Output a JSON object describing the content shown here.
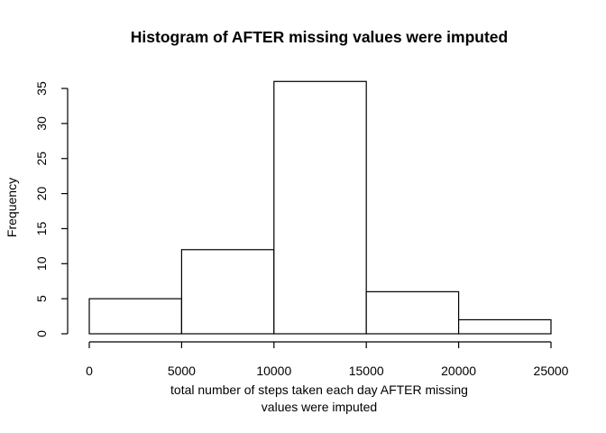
{
  "chart_data": {
    "type": "bar",
    "title": "Histogram of AFTER missing values were imputed",
    "xlabel": "total number of steps taken each day AFTER missing",
    "xlabel_line2": "values were imputed",
    "ylabel": "Frequency",
    "bins": [
      {
        "from": 0,
        "to": 5000,
        "count": 5
      },
      {
        "from": 5000,
        "to": 10000,
        "count": 12
      },
      {
        "from": 10000,
        "to": 15000,
        "count": 36
      },
      {
        "from": 15000,
        "to": 20000,
        "count": 6
      },
      {
        "from": 20000,
        "to": 25000,
        "count": 2
      }
    ],
    "xlim": [
      0,
      25000
    ],
    "ylim": [
      0,
      36
    ],
    "x_ticks": [
      "0",
      "5000",
      "10000",
      "15000",
      "20000",
      "25000"
    ],
    "y_ticks": [
      "0",
      "5",
      "10",
      "15",
      "20",
      "25",
      "30",
      "35"
    ],
    "grid": false,
    "legend": "none",
    "bar_fill": "#ffffff",
    "bar_stroke": "#000000"
  }
}
